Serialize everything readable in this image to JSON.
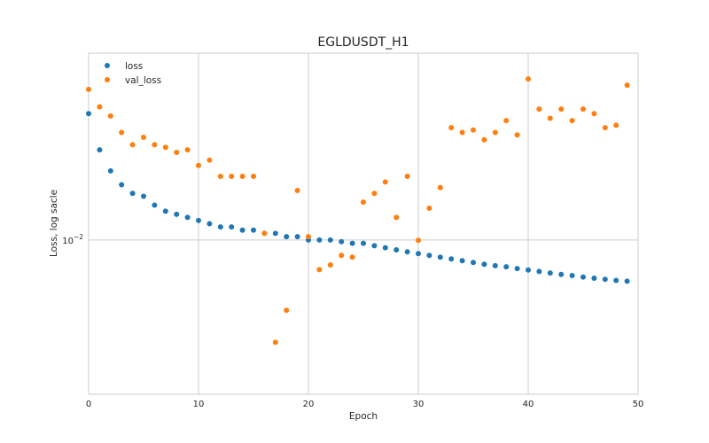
{
  "chart_data": {
    "type": "scatter",
    "title": "EGLDUSDT_H1",
    "xlabel": "Epoch",
    "ylabel": "Loss, log sacle",
    "xlim": [
      0,
      50
    ],
    "ylim": [
      0.0063,
      0.0175
    ],
    "yscale": "log",
    "x_ticks": [
      0,
      10,
      20,
      30,
      40,
      50
    ],
    "y_ticks": [
      {
        "value": 0.01,
        "base": "10",
        "exponent": "−2"
      }
    ],
    "grid": true,
    "legend_position": "top-left",
    "x": [
      0,
      1,
      2,
      3,
      4,
      5,
      6,
      7,
      8,
      9,
      10,
      11,
      12,
      13,
      14,
      15,
      16,
      17,
      18,
      19,
      20,
      21,
      22,
      23,
      24,
      25,
      26,
      27,
      28,
      29,
      30,
      31,
      32,
      33,
      34,
      35,
      36,
      37,
      38,
      39,
      40,
      41,
      42,
      43,
      44,
      45,
      46,
      47,
      48,
      49
    ],
    "series": [
      {
        "name": "loss",
        "color": "#1f77b4",
        "values": [
          0.0146,
          0.0131,
          0.0123,
          0.0118,
          0.0115,
          0.0114,
          0.0111,
          0.0109,
          0.0108,
          0.0107,
          0.0106,
          0.0105,
          0.0104,
          0.0104,
          0.0103,
          0.0103,
          0.0102,
          0.0102,
          0.0101,
          0.0101,
          0.01,
          0.01,
          0.01,
          0.00995,
          0.0099,
          0.0099,
          0.00983,
          0.00977,
          0.00971,
          0.00965,
          0.0096,
          0.00955,
          0.0095,
          0.00945,
          0.0094,
          0.00935,
          0.0093,
          0.00926,
          0.00923,
          0.00918,
          0.00914,
          0.0091,
          0.00906,
          0.00902,
          0.00899,
          0.00895,
          0.00892,
          0.00889,
          0.00886,
          0.00884
        ]
      },
      {
        "name": "val_loss",
        "color": "#ff7f0e",
        "values": [
          0.0157,
          0.0149,
          0.0145,
          0.0138,
          0.0133,
          0.0136,
          0.0133,
          0.0132,
          0.013,
          0.0131,
          0.0125,
          0.0127,
          0.0121,
          0.0121,
          0.0121,
          0.0121,
          0.0102,
          0.00736,
          0.0081,
          0.0116,
          0.0101,
          0.00915,
          0.00928,
          0.00955,
          0.0095,
          0.0112,
          0.0115,
          0.0119,
          0.0107,
          0.0121,
          0.00999,
          0.011,
          0.0117,
          0.014,
          0.0138,
          0.0139,
          0.0135,
          0.0138,
          0.0143,
          0.0137,
          0.0162,
          0.0148,
          0.0144,
          0.0148,
          0.0143,
          0.0148,
          0.0146,
          0.014,
          0.0141,
          0.0159
        ]
      }
    ]
  }
}
